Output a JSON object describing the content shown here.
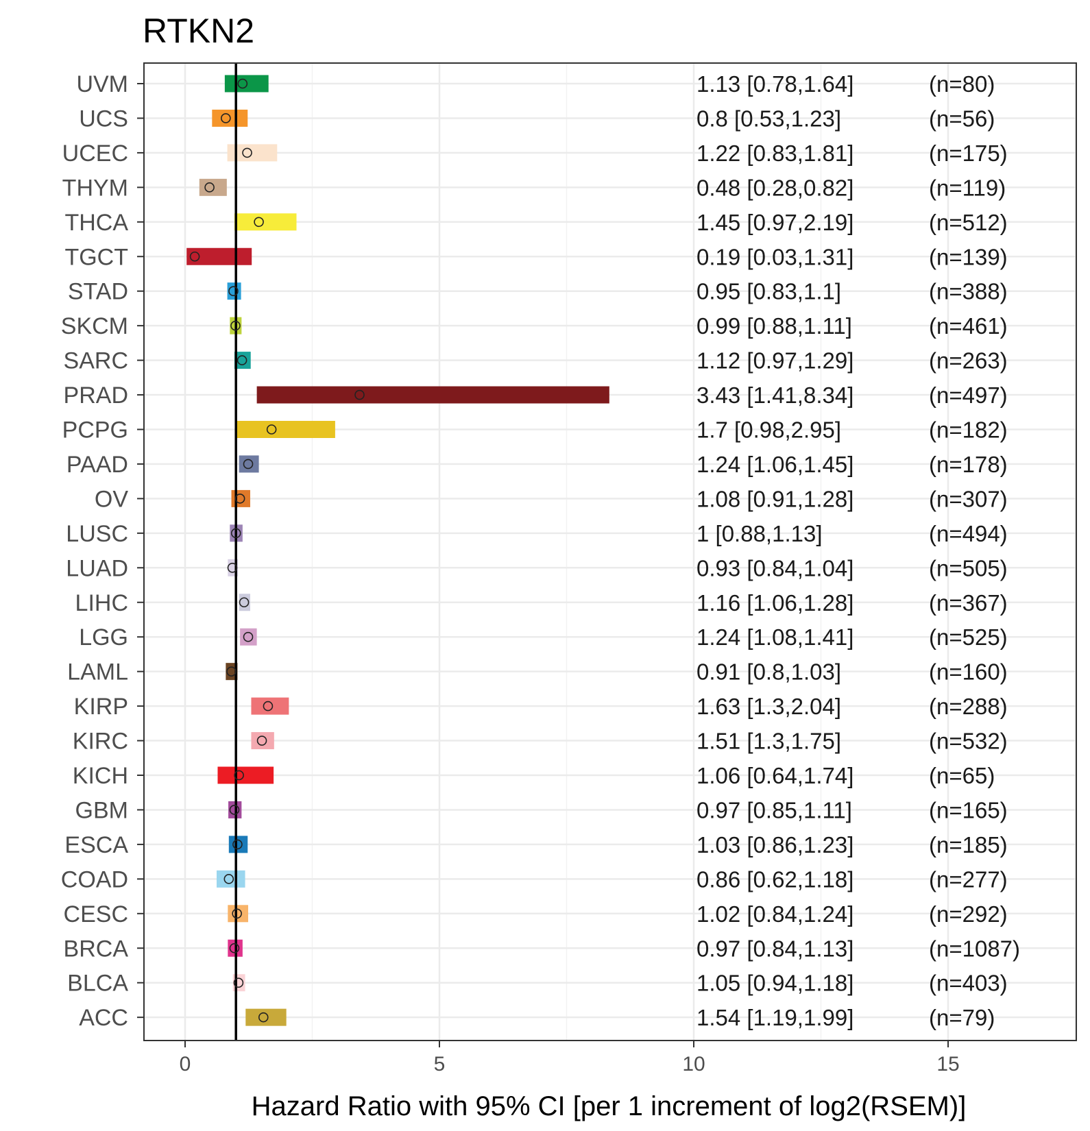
{
  "chart_data": {
    "type": "forest",
    "title": "RTKN2",
    "xlabel": "Hazard Ratio with 95% CI [per 1 increment of log2(RSEM)]",
    "ylabel": "",
    "xlim": [
      -0.8,
      17.4
    ],
    "xticks": [
      "0",
      "5",
      "10",
      "15"
    ],
    "reference_line": 1,
    "grid": true,
    "rows": [
      {
        "label": "UVM",
        "hr": 1.13,
        "lo": 0.78,
        "hi": 1.64,
        "text": "1.13 [0.78,1.64]",
        "n": "(n=80)",
        "color": "#0b9648"
      },
      {
        "label": "UCS",
        "hr": 0.8,
        "lo": 0.53,
        "hi": 1.23,
        "text": "0.8 [0.53,1.23]",
        "n": "(n=56)",
        "color": "#f5952a"
      },
      {
        "label": "UCEC",
        "hr": 1.22,
        "lo": 0.83,
        "hi": 1.81,
        "text": "1.22 [0.83,1.81]",
        "n": "(n=175)",
        "color": "#fbe3cc"
      },
      {
        "label": "THYM",
        "hr": 0.48,
        "lo": 0.28,
        "hi": 0.82,
        "text": "0.48 [0.28,0.82]",
        "n": "(n=119)",
        "color": "#c8a88c"
      },
      {
        "label": "THCA",
        "hr": 1.45,
        "lo": 0.97,
        "hi": 2.19,
        "text": "1.45 [0.97,2.19]",
        "n": "(n=512)",
        "color": "#f7ec3a"
      },
      {
        "label": "TGCT",
        "hr": 0.19,
        "lo": 0.03,
        "hi": 1.31,
        "text": "0.19 [0.03,1.31]",
        "n": "(n=139)",
        "color": "#be1e2d"
      },
      {
        "label": "STAD",
        "hr": 0.95,
        "lo": 0.83,
        "hi": 1.1,
        "text": "0.95 [0.83,1.1]",
        "n": "(n=388)",
        "color": "#2a9fd8"
      },
      {
        "label": "SKCM",
        "hr": 0.99,
        "lo": 0.88,
        "hi": 1.11,
        "text": "0.99 [0.88,1.11]",
        "n": "(n=461)",
        "color": "#bed33c"
      },
      {
        "label": "SARC",
        "hr": 1.12,
        "lo": 0.97,
        "hi": 1.29,
        "text": "1.12 [0.97,1.29]",
        "n": "(n=263)",
        "color": "#19a39a"
      },
      {
        "label": "PRAD",
        "hr": 3.43,
        "lo": 1.41,
        "hi": 8.34,
        "text": "3.43 [1.41,8.34]",
        "n": "(n=497)",
        "color": "#7e1a1c"
      },
      {
        "label": "PCPG",
        "hr": 1.7,
        "lo": 0.98,
        "hi": 2.95,
        "text": "1.7 [0.98,2.95]",
        "n": "(n=182)",
        "color": "#e8c321"
      },
      {
        "label": "PAAD",
        "hr": 1.24,
        "lo": 1.06,
        "hi": 1.45,
        "text": "1.24 [1.06,1.45]",
        "n": "(n=178)",
        "color": "#6d7aa0"
      },
      {
        "label": "OV",
        "hr": 1.08,
        "lo": 0.91,
        "hi": 1.28,
        "text": "1.08 [0.91,1.28]",
        "n": "(n=307)",
        "color": "#e07a2a"
      },
      {
        "label": "LUSC",
        "hr": 1,
        "lo": 0.88,
        "hi": 1.13,
        "text": "1 [0.88,1.13]",
        "n": "(n=494)",
        "color": "#9c84b5"
      },
      {
        "label": "LUAD",
        "hr": 0.93,
        "lo": 0.84,
        "hi": 1.04,
        "text": "0.93 [0.84,1.04]",
        "n": "(n=505)",
        "color": "#dad2e6"
      },
      {
        "label": "LIHC",
        "hr": 1.16,
        "lo": 1.06,
        "hi": 1.28,
        "text": "1.16 [1.06,1.28]",
        "n": "(n=367)",
        "color": "#cbcbdd"
      },
      {
        "label": "LGG",
        "hr": 1.24,
        "lo": 1.08,
        "hi": 1.41,
        "text": "1.24 [1.08,1.41]",
        "n": "(n=525)",
        "color": "#d3a0c8"
      },
      {
        "label": "LAML",
        "hr": 0.91,
        "lo": 0.8,
        "hi": 1.03,
        "text": "0.91 [0.8,1.03]",
        "n": "(n=160)",
        "color": "#6b4423"
      },
      {
        "label": "KIRP",
        "hr": 1.63,
        "lo": 1.3,
        "hi": 2.04,
        "text": "1.63 [1.3,2.04]",
        "n": "(n=288)",
        "color": "#ee7376"
      },
      {
        "label": "KIRC",
        "hr": 1.51,
        "lo": 1.3,
        "hi": 1.75,
        "text": "1.51 [1.3,1.75]",
        "n": "(n=532)",
        "color": "#f4a9b0"
      },
      {
        "label": "KICH",
        "hr": 1.06,
        "lo": 0.64,
        "hi": 1.74,
        "text": "1.06 [0.64,1.74]",
        "n": "(n=65)",
        "color": "#ec1c24"
      },
      {
        "label": "GBM",
        "hr": 0.97,
        "lo": 0.85,
        "hi": 1.11,
        "text": "0.97 [0.85,1.11]",
        "n": "(n=165)",
        "color": "#a24b9b"
      },
      {
        "label": "ESCA",
        "hr": 1.03,
        "lo": 0.86,
        "hi": 1.23,
        "text": "1.03 [0.86,1.23]",
        "n": "(n=185)",
        "color": "#1a7ab8"
      },
      {
        "label": "COAD",
        "hr": 0.86,
        "lo": 0.62,
        "hi": 1.18,
        "text": "0.86 [0.62,1.18]",
        "n": "(n=277)",
        "color": "#9ad6ef"
      },
      {
        "label": "CESC",
        "hr": 1.02,
        "lo": 0.84,
        "hi": 1.24,
        "text": "1.02 [0.84,1.24]",
        "n": "(n=292)",
        "color": "#f8b46a"
      },
      {
        "label": "BRCA",
        "hr": 0.97,
        "lo": 0.84,
        "hi": 1.13,
        "text": "0.97 [0.84,1.13]",
        "n": "(n=1087)",
        "color": "#e0338c"
      },
      {
        "label": "BLCA",
        "hr": 1.05,
        "lo": 0.94,
        "hi": 1.18,
        "text": "1.05 [0.94,1.18]",
        "n": "(n=403)",
        "color": "#fad3d6"
      },
      {
        "label": "ACC",
        "hr": 1.54,
        "lo": 1.19,
        "hi": 1.99,
        "text": "1.54 [1.19,1.99]",
        "n": "(n=79)",
        "color": "#c8a93a"
      }
    ]
  }
}
